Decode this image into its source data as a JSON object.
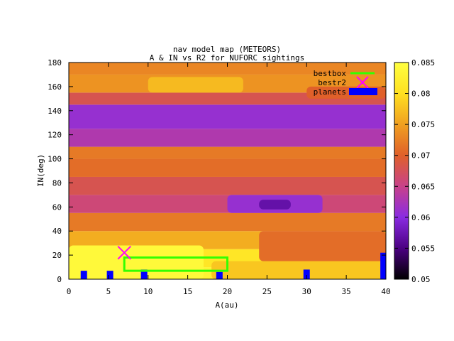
{
  "chart_data": {
    "type": "heatmap",
    "title": "nav model map (METEORS)",
    "subtitle": "A & IN vs R2 for NUFORC sightings",
    "xlabel": "A(au)",
    "ylabel": "IN(deg)",
    "xlim": [
      0,
      40
    ],
    "ylim": [
      0,
      180
    ],
    "xticks": [
      "0",
      "5",
      "10",
      "15",
      "20",
      "25",
      "30",
      "35",
      "40"
    ],
    "yticks": [
      "0",
      "20",
      "40",
      "60",
      "80",
      "100",
      "120",
      "140",
      "160",
      "180"
    ],
    "colorbar": {
      "range": [
        0.05,
        0.085
      ],
      "ticks": [
        "0.05",
        "0.055",
        "0.06",
        "0.065",
        "0.07",
        "0.075",
        "0.08",
        "0.085"
      ],
      "palette": [
        "#000000",
        "#4b0082",
        "#8a2be2",
        "#c8428a",
        "#e0602a",
        "#f0a020",
        "#ffe020",
        "#ffff40"
      ]
    },
    "legend": {
      "position": "top-right",
      "entries": [
        {
          "name": "bestbox",
          "color": "#33ff00",
          "style": "line"
        },
        {
          "name": "bestr2",
          "color": "#ff00ff",
          "style": "cross"
        },
        {
          "name": "planets",
          "color": "#0000ff",
          "style": "box"
        }
      ]
    },
    "bands": [
      {
        "y0": 0,
        "y1": 10,
        "value": 0.083
      },
      {
        "y0": 10,
        "y1": 25,
        "value": 0.081
      },
      {
        "y0": 25,
        "y1": 40,
        "value": 0.076
      },
      {
        "y0": 40,
        "y1": 55,
        "value": 0.072
      },
      {
        "y0": 55,
        "y1": 70,
        "value": 0.066
      },
      {
        "y0": 70,
        "y1": 85,
        "value": 0.068
      },
      {
        "y0": 85,
        "y1": 100,
        "value": 0.071
      },
      {
        "y0": 100,
        "y1": 110,
        "value": 0.072
      },
      {
        "y0": 110,
        "y1": 125,
        "value": 0.063
      },
      {
        "y0": 125,
        "y1": 145,
        "value": 0.061
      },
      {
        "y0": 145,
        "y1": 155,
        "value": 0.068
      },
      {
        "y0": 155,
        "y1": 170,
        "value": 0.074
      },
      {
        "y0": 170,
        "y1": 180,
        "value": 0.073
      }
    ],
    "patches": [
      {
        "x0": 0,
        "x1": 17,
        "y0": 0,
        "y1": 28,
        "value": 0.084
      },
      {
        "x0": 18,
        "x1": 40,
        "y0": 0,
        "y1": 15,
        "value": 0.078
      },
      {
        "x0": 24,
        "x1": 40,
        "y0": 15,
        "y1": 40,
        "value": 0.071
      },
      {
        "x0": 20,
        "x1": 32,
        "y0": 55,
        "y1": 70,
        "value": 0.061
      },
      {
        "x0": 24,
        "x1": 28,
        "y0": 58,
        "y1": 66,
        "value": 0.057
      },
      {
        "x0": 10,
        "x1": 22,
        "y0": 155,
        "y1": 168,
        "value": 0.077
      },
      {
        "x0": 30,
        "x1": 40,
        "y0": 150,
        "y1": 160,
        "value": 0.07
      }
    ],
    "bestbox": {
      "x0": 7,
      "x1": 20,
      "y0": 7,
      "y1": 18
    },
    "bestr2": {
      "x": 7,
      "y": 22
    },
    "planets": [
      {
        "a": 1.9,
        "in": 7
      },
      {
        "a": 5.2,
        "in": 7
      },
      {
        "a": 9.5,
        "in": 8
      },
      {
        "a": 19.0,
        "in": 6
      },
      {
        "a": 30.0,
        "in": 8
      },
      {
        "a": 39.7,
        "in": 22
      }
    ]
  }
}
